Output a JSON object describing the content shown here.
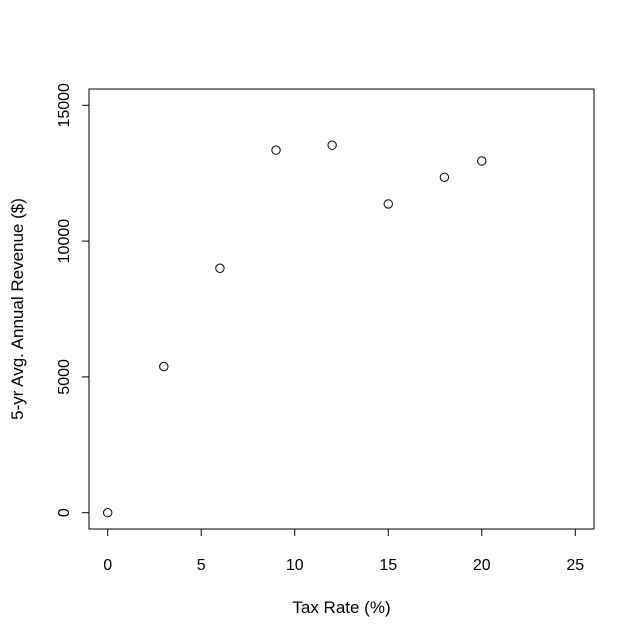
{
  "chart_data": {
    "type": "scatter",
    "title": "",
    "xlabel": "Tax Rate (%)",
    "ylabel": "5-yr Avg. Annual Revenue ($)",
    "x": [
      0,
      3,
      6,
      9,
      12,
      15,
      18,
      20
    ],
    "y": [
      0,
      5380,
      9000,
      13350,
      13530,
      11370,
      12350,
      12950
    ],
    "xlim": [
      -1,
      26
    ],
    "ylim": [
      -600,
      15600
    ],
    "xticks": [
      0,
      5,
      10,
      15,
      20,
      25
    ],
    "yticks": [
      0,
      5000,
      10000,
      15000
    ],
    "xtick_labels": [
      "0",
      "5",
      "10",
      "15",
      "20",
      "25"
    ],
    "ytick_labels": [
      "0",
      "5000",
      "10000",
      "15000"
    ],
    "grid": false,
    "marker": "open-circle",
    "marker_color": "#000000"
  }
}
